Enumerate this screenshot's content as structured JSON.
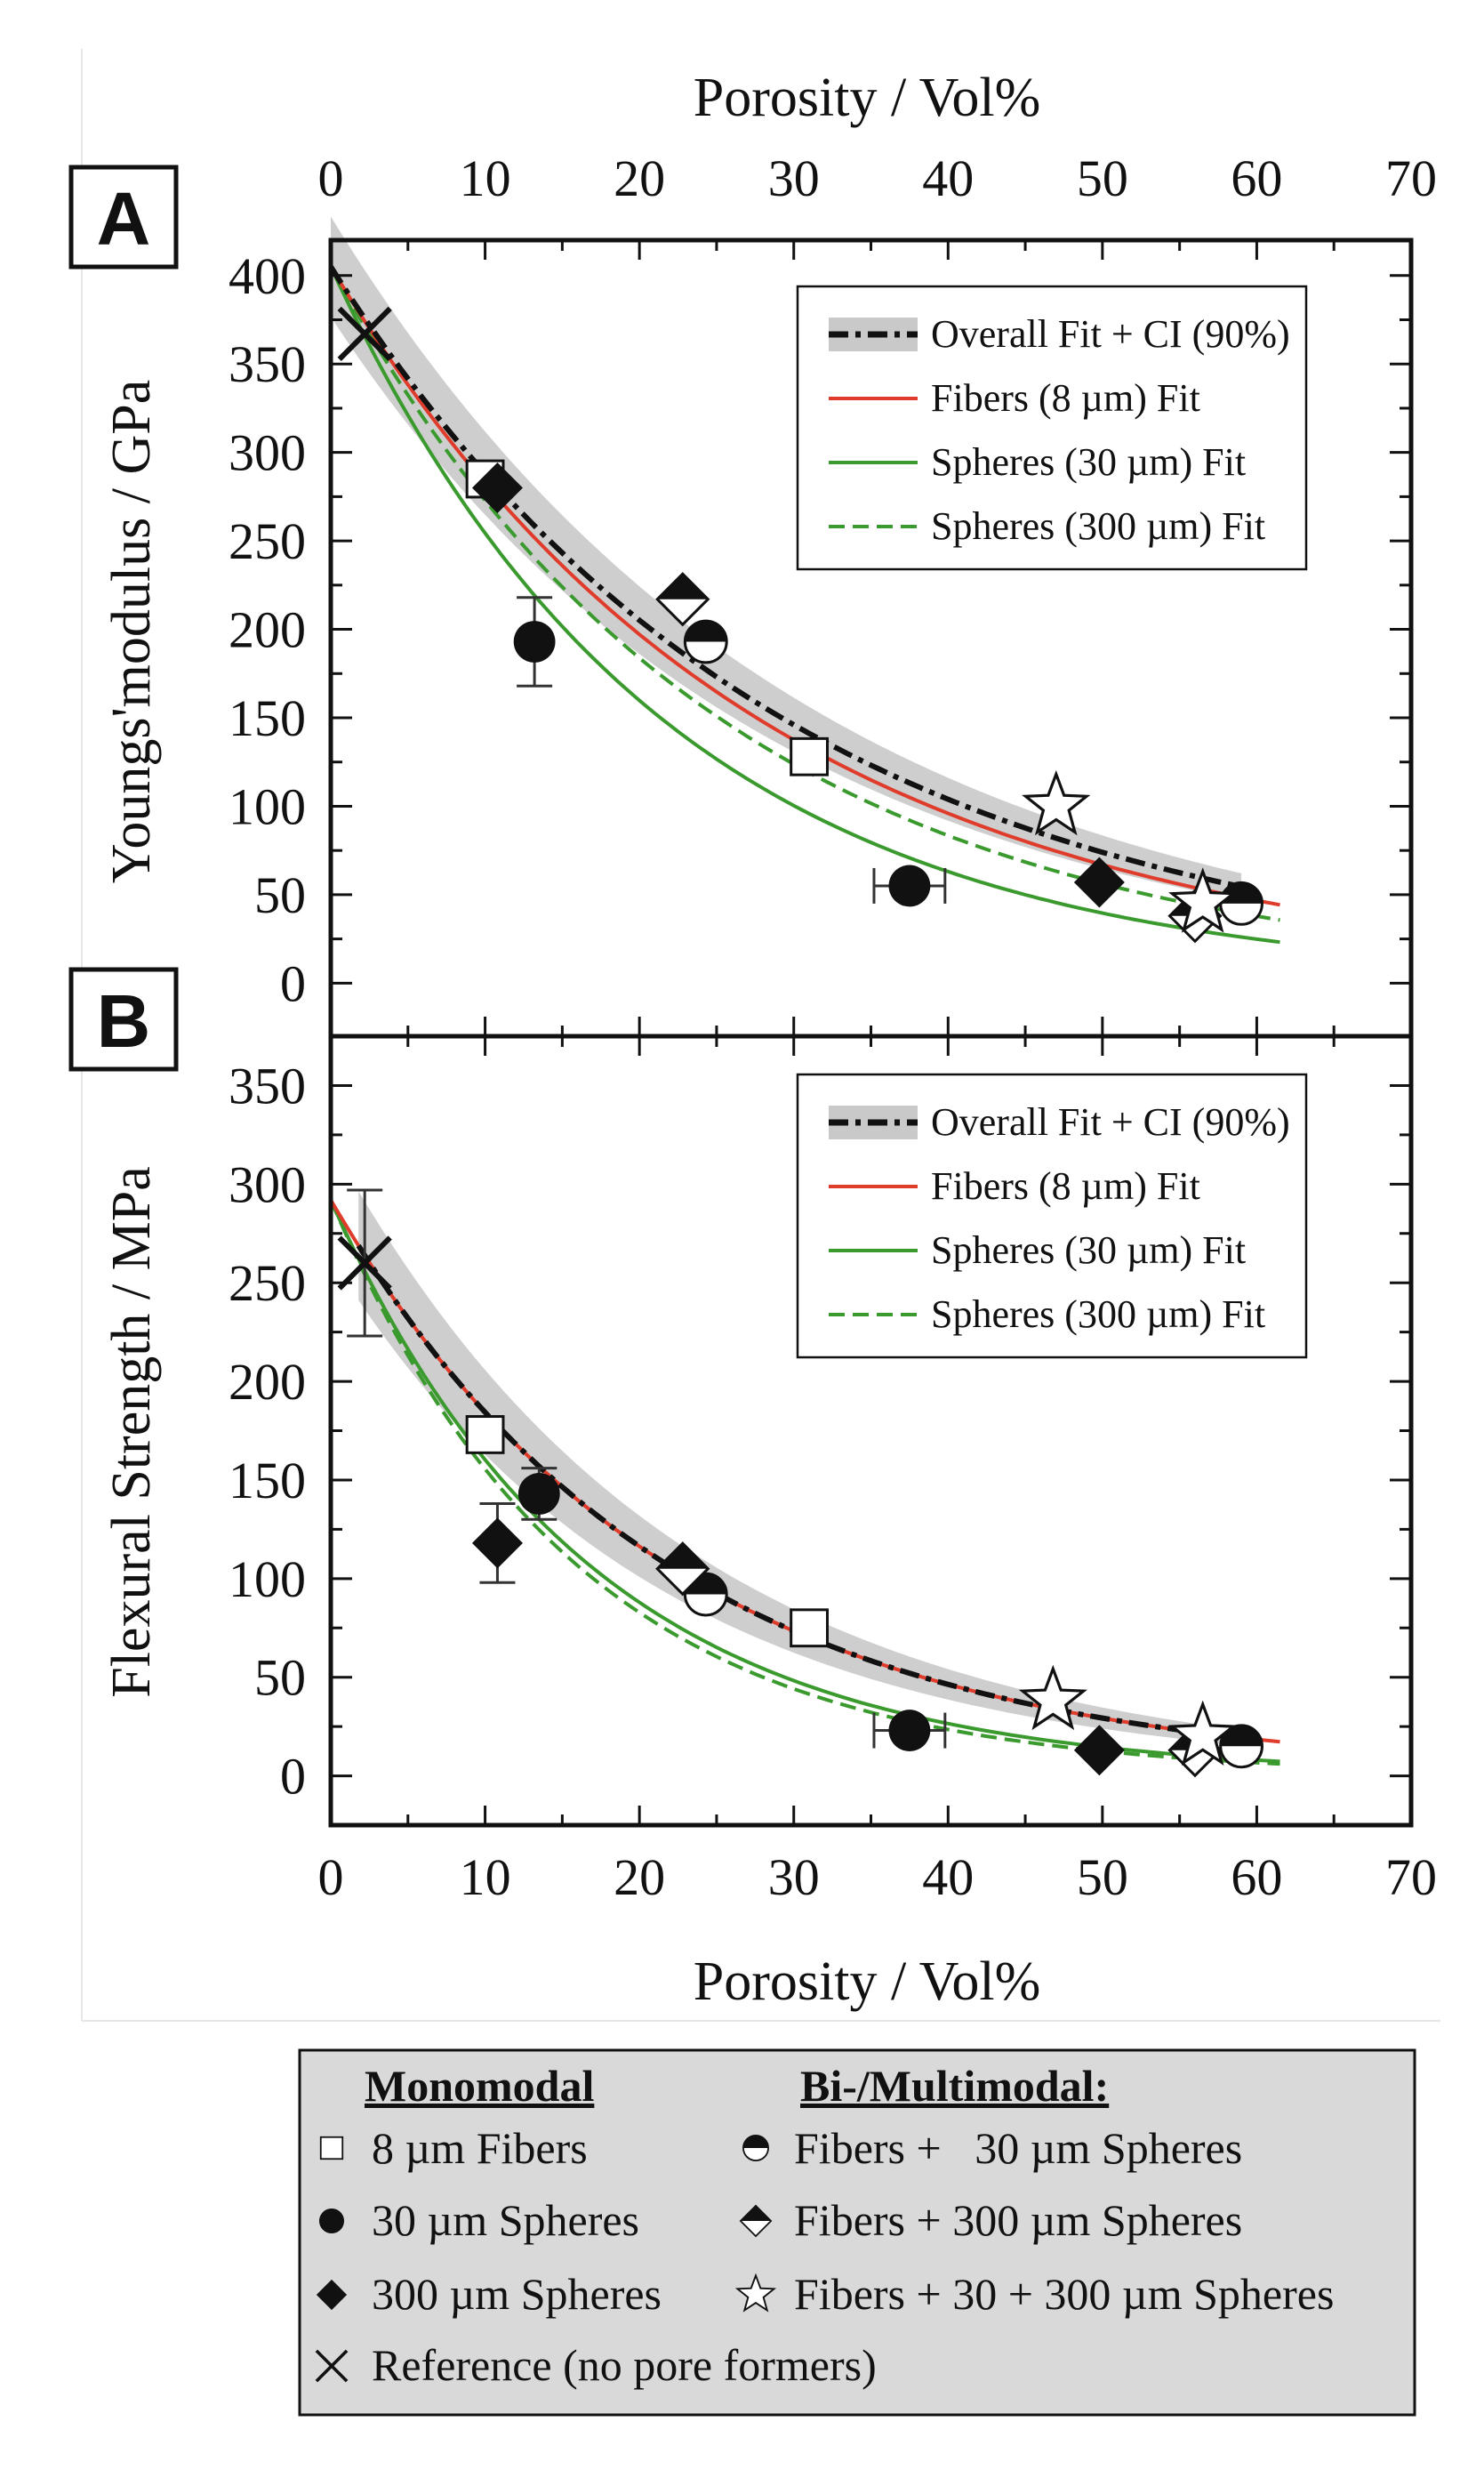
{
  "colors": {
    "fibers_fit": "#e03c2c",
    "spheres_fit": "#3a9a2e",
    "overall_fit": "#111111",
    "ci_band": "#c9c9c9",
    "key_background": "#d9d9d9"
  },
  "chart_data": [
    {
      "type": "scatter",
      "panel": "A",
      "xlabel_top": "Porosity / Vol%",
      "ylabel": "Youngs'modulus / GPa",
      "xlim": [
        0,
        70
      ],
      "ylim": [
        -30,
        420
      ],
      "xticks": [
        0,
        10,
        20,
        30,
        40,
        50,
        60,
        70
      ],
      "yticks": [
        0,
        50,
        100,
        150,
        200,
        250,
        300,
        350,
        400
      ],
      "legend": [
        "Overall Fit + CI (90%)",
        "Fibers (8 µm) Fit",
        "Spheres (30 µm) Fit",
        "Spheres (300 µm) Fit"
      ],
      "fits": {
        "overall": {
          "a": 405,
          "b": 0.034,
          "x_start": 0,
          "x_end": 59,
          "ci": 0.07
        },
        "fibers": {
          "a": 405,
          "b": 0.036,
          "x_start": 0,
          "x_end": 61.5
        },
        "spheres30": {
          "a": 405,
          "b": 0.0465,
          "x_start": 0,
          "x_end": 61.5
        },
        "spheres300": {
          "a": 405,
          "b": 0.0395,
          "x_start": 0,
          "x_end": 61.5
        }
      },
      "series": [
        {
          "name": "8 µm Fibers",
          "marker": "open-square",
          "points": [
            {
              "x": 10,
              "y": 285
            },
            {
              "x": 31,
              "y": 128
            }
          ]
        },
        {
          "name": "30 µm Spheres",
          "marker": "filled-circle",
          "points": [
            {
              "x": 13.2,
              "y": 193,
              "yerr": 25
            },
            {
              "x": 37.5,
              "y": 55,
              "xerr": 2.3
            }
          ]
        },
        {
          "name": "300 µm Spheres",
          "marker": "filled-diamond",
          "points": [
            {
              "x": 10.8,
              "y": 280
            },
            {
              "x": 49.8,
              "y": 57
            }
          ]
        },
        {
          "name": "Fibers + 30 µm Spheres",
          "marker": "half-circle",
          "points": [
            {
              "x": 24.3,
              "y": 193
            },
            {
              "x": 59,
              "y": 45
            }
          ]
        },
        {
          "name": "Fibers + 300 µm Spheres",
          "marker": "half-diamond",
          "points": [
            {
              "x": 22.8,
              "y": 217
            },
            {
              "x": 56,
              "y": 38
            }
          ]
        },
        {
          "name": "Fibers + 30 + 300 µm Spheres",
          "marker": "open-star",
          "points": [
            {
              "x": 47,
              "y": 100
            },
            {
              "x": 56.5,
              "y": 45
            }
          ]
        },
        {
          "name": "Reference (no pore formers)",
          "marker": "cross",
          "points": [
            {
              "x": 2.2,
              "y": 367
            }
          ]
        }
      ]
    },
    {
      "type": "scatter",
      "panel": "B",
      "xlabel": "Porosity / Vol%",
      "ylabel": "Flexural Strength / MPa",
      "xlim": [
        0,
        70
      ],
      "ylim": [
        -25,
        375
      ],
      "xticks": [
        0,
        10,
        20,
        30,
        40,
        50,
        60,
        70
      ],
      "yticks": [
        0,
        50,
        100,
        150,
        200,
        250,
        300,
        350
      ],
      "legend": [
        "Overall Fit + CI (90%)",
        "Fibers (8 µm) Fit",
        "Spheres (30 µm) Fit",
        "Spheres (300 µm) Fit"
      ],
      "fits": {
        "overall": {
          "a": 292,
          "b": 0.046,
          "x_start": 1.8,
          "x_end": 59,
          "ci": 0.1
        },
        "fibers": {
          "a": 292,
          "b": 0.046,
          "x_start": 0,
          "x_end": 61.5
        },
        "spheres30": {
          "a": 292,
          "b": 0.06,
          "x_start": 0,
          "x_end": 61.5
        },
        "spheres300": {
          "a": 292,
          "b": 0.063,
          "x_start": 0,
          "x_end": 61.5
        }
      },
      "series": [
        {
          "name": "8 µm Fibers",
          "marker": "open-square",
          "points": [
            {
              "x": 10,
              "y": 173
            },
            {
              "x": 31,
              "y": 75
            }
          ]
        },
        {
          "name": "30 µm Spheres",
          "marker": "filled-circle",
          "points": [
            {
              "x": 13.5,
              "y": 143,
              "yerr": 13
            },
            {
              "x": 37.5,
              "y": 23,
              "xerr": 2.3
            }
          ]
        },
        {
          "name": "300 µm Spheres",
          "marker": "filled-diamond",
          "points": [
            {
              "x": 10.8,
              "y": 118,
              "yerr": 20
            },
            {
              "x": 49.8,
              "y": 13
            }
          ]
        },
        {
          "name": "Fibers + 30 µm Spheres",
          "marker": "half-circle",
          "points": [
            {
              "x": 24.3,
              "y": 92
            },
            {
              "x": 59,
              "y": 15
            }
          ]
        },
        {
          "name": "Fibers + 300 µm Spheres",
          "marker": "half-diamond",
          "points": [
            {
              "x": 22.8,
              "y": 105
            },
            {
              "x": 56,
              "y": 13
            }
          ]
        },
        {
          "name": "Fibers + 30 + 300 µm Spheres",
          "marker": "open-star",
          "points": [
            {
              "x": 46.8,
              "y": 38
            },
            {
              "x": 56.5,
              "y": 20
            }
          ]
        },
        {
          "name": "Reference (no pore formers)",
          "marker": "cross",
          "points": [
            {
              "x": 2.2,
              "y": 260,
              "yerr": 37
            }
          ]
        }
      ]
    }
  ],
  "marker_key": {
    "heading_left": "Monomodal",
    "heading_right": "Bi-/Multimodal:",
    "items_left": [
      {
        "marker": "open-square",
        "label": "8 µm Fibers"
      },
      {
        "marker": "filled-circle",
        "label": "30 µm Spheres"
      },
      {
        "marker": "filled-diamond",
        "label": "300 µm Spheres"
      },
      {
        "marker": "cross",
        "label": "Reference (no pore formers)"
      }
    ],
    "items_right": [
      {
        "marker": "half-circle",
        "label": "Fibers +   30 µm Spheres"
      },
      {
        "marker": "half-diamond",
        "label": "Fibers + 300 µm Spheres"
      },
      {
        "marker": "open-star",
        "label": "Fibers + 30 + 300 µm Spheres"
      }
    ]
  }
}
